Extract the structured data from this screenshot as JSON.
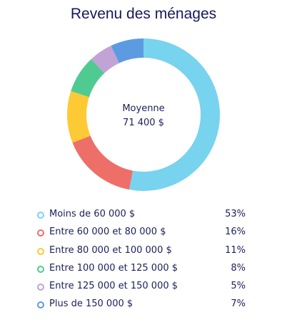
{
  "chart_data": {
    "type": "pie",
    "title": "Revenu des ménages",
    "center_label": "Moyenne",
    "center_value": "71 400 $",
    "categories": [
      "Moins de 60 000 $",
      "Entre 60 000 et 80 000 $",
      "Entre 80 000 et 100 000 $",
      "Entre 100 000 et 125 000 $",
      "Entre 125 000 et 150 000 $",
      "Plus de 150 000 $"
    ],
    "values": [
      53,
      16,
      11,
      8,
      5,
      7
    ],
    "value_labels": [
      "53%",
      "16%",
      "11%",
      "8%",
      "5%",
      "7%"
    ],
    "colors": [
      "#78d3ee",
      "#ee6e68",
      "#fdc935",
      "#4fcb91",
      "#c3a2d6",
      "#5c9be2"
    ],
    "legend_position": "bottom"
  }
}
